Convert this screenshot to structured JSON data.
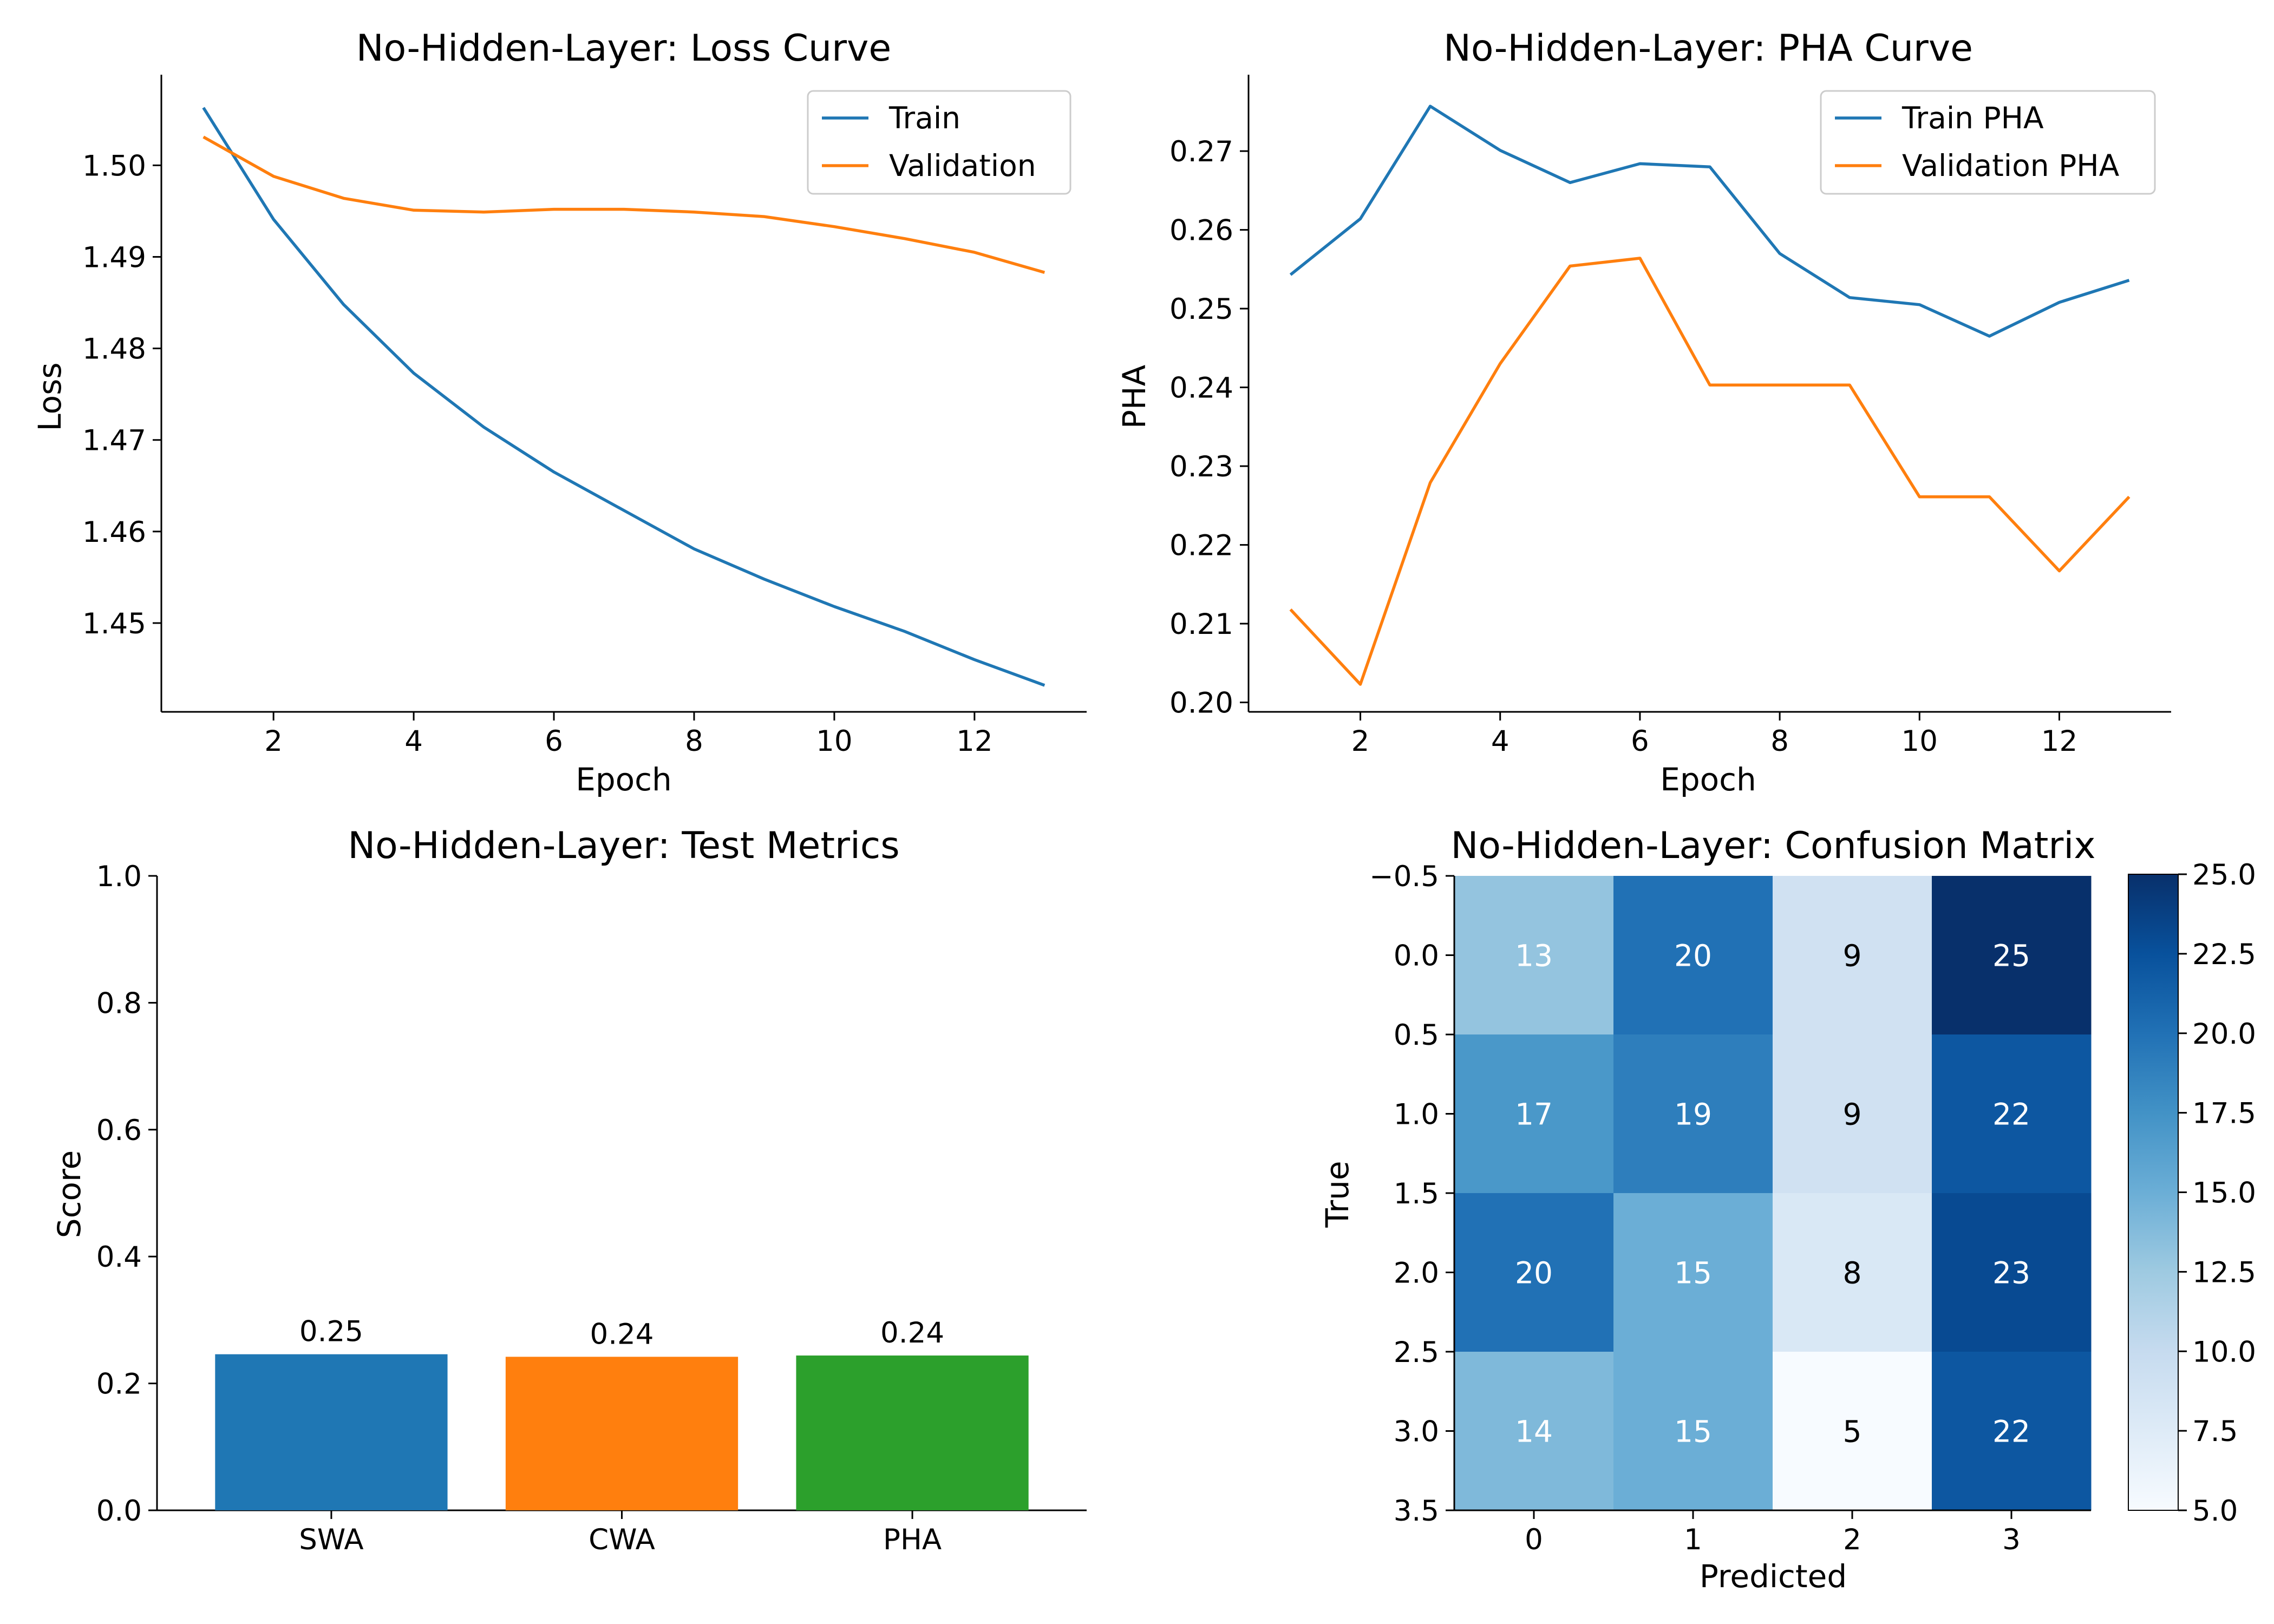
{
  "chart_data": [
    {
      "type": "line",
      "title": "No-Hidden-Layer: Loss Curve",
      "xlabel": "Epoch",
      "ylabel": "Loss",
      "x": [
        1,
        2,
        3,
        4,
        5,
        6,
        7,
        8,
        9,
        10,
        11,
        12,
        13
      ],
      "xlim": [
        0.4,
        13.6
      ],
      "ylim": [
        1.4403,
        1.5099
      ],
      "xticks": [
        2,
        4,
        6,
        8,
        10,
        12
      ],
      "yticks": [
        1.45,
        1.46,
        1.47,
        1.48,
        1.49,
        1.5
      ],
      "ytick_labels": [
        "1.45",
        "1.46",
        "1.47",
        "1.48",
        "1.49",
        "1.50"
      ],
      "legend_loc": "upper right",
      "series": [
        {
          "name": "Train",
          "color": "#1f77b4",
          "values": [
            1.5063,
            1.4941,
            1.4848,
            1.4773,
            1.4714,
            1.4665,
            1.4623,
            1.4581,
            1.4548,
            1.4518,
            1.4491,
            1.446,
            1.4432
          ]
        },
        {
          "name": "Validation",
          "color": "#ff7f0e",
          "values": [
            1.5031,
            1.4988,
            1.4964,
            1.4951,
            1.4949,
            1.4952,
            1.4952,
            1.4949,
            1.4944,
            1.4933,
            1.492,
            1.4905,
            1.4883
          ]
        }
      ]
    },
    {
      "type": "line",
      "title": "No-Hidden-Layer: PHA Curve",
      "xlabel": "Epoch",
      "ylabel": "PHA",
      "x": [
        1,
        2,
        3,
        4,
        5,
        6,
        7,
        8,
        9,
        10,
        11,
        12,
        13
      ],
      "xlim": [
        0.4,
        13.6
      ],
      "ylim": [
        0.1988,
        0.2797
      ],
      "xticks": [
        2,
        4,
        6,
        8,
        10,
        12
      ],
      "yticks": [
        0.2,
        0.21,
        0.22,
        0.23,
        0.24,
        0.25,
        0.26,
        0.27
      ],
      "ytick_labels": [
        "0.20",
        "0.21",
        "0.22",
        "0.23",
        "0.24",
        "0.25",
        "0.26",
        "0.27"
      ],
      "legend_loc": "upper right",
      "series": [
        {
          "name": "Train PHA",
          "color": "#1f77b4",
          "values": [
            0.2543,
            0.2614,
            0.2757,
            0.2701,
            0.266,
            0.2684,
            0.268,
            0.257,
            0.2514,
            0.2505,
            0.2465,
            0.2508,
            0.2536
          ]
        },
        {
          "name": "Validation PHA",
          "color": "#ff7f0e",
          "values": [
            0.2118,
            0.2023,
            0.2279,
            0.243,
            0.2554,
            0.2564,
            0.2403,
            0.2403,
            0.2403,
            0.2261,
            0.2261,
            0.2167,
            0.2261
          ]
        }
      ]
    },
    {
      "type": "bar",
      "title": "No-Hidden-Layer: Test Metrics",
      "xlabel": "",
      "ylabel": "Score",
      "ylim": [
        0,
        1.0
      ],
      "yticks": [
        0.0,
        0.2,
        0.4,
        0.6,
        0.8,
        1.0
      ],
      "ytick_labels": [
        "0.0",
        "0.2",
        "0.4",
        "0.6",
        "0.8",
        "1.0"
      ],
      "categories": [
        "SWA",
        "CWA",
        "PHA"
      ],
      "values": [
        0.246,
        0.242,
        0.244
      ],
      "value_labels": [
        "0.25",
        "0.24",
        "0.24"
      ],
      "colors": [
        "#1f77b4",
        "#ff7f0e",
        "#2ca02c"
      ]
    },
    {
      "type": "heatmap",
      "title": "No-Hidden-Layer: Confusion Matrix",
      "xlabel": "Predicted",
      "ylabel": "True",
      "xticks": [
        0,
        1,
        2,
        3
      ],
      "xtick_labels": [
        "0",
        "1",
        "2",
        "3"
      ],
      "yticks": [
        -0.5,
        0.0,
        0.5,
        1.0,
        1.5,
        2.0,
        2.5,
        3.0,
        3.5
      ],
      "ytick_labels": [
        "−0.5",
        "0.0",
        "0.5",
        "1.0",
        "1.5",
        "2.0",
        "2.5",
        "3.0",
        "3.5"
      ],
      "matrix": [
        [
          13,
          20,
          9,
          25
        ],
        [
          17,
          19,
          9,
          22
        ],
        [
          20,
          15,
          8,
          23
        ],
        [
          14,
          15,
          5,
          22
        ]
      ],
      "colormap": "Blues",
      "vmin": 5,
      "vmax": 25,
      "colorbar_ticks": [
        5.0,
        7.5,
        10.0,
        12.5,
        15.0,
        17.5,
        20.0,
        22.5,
        25.0
      ],
      "colorbar_tick_labels": [
        "5.0",
        "7.5",
        "10.0",
        "12.5",
        "15.0",
        "17.5",
        "20.0",
        "22.5",
        "25.0"
      ]
    }
  ]
}
